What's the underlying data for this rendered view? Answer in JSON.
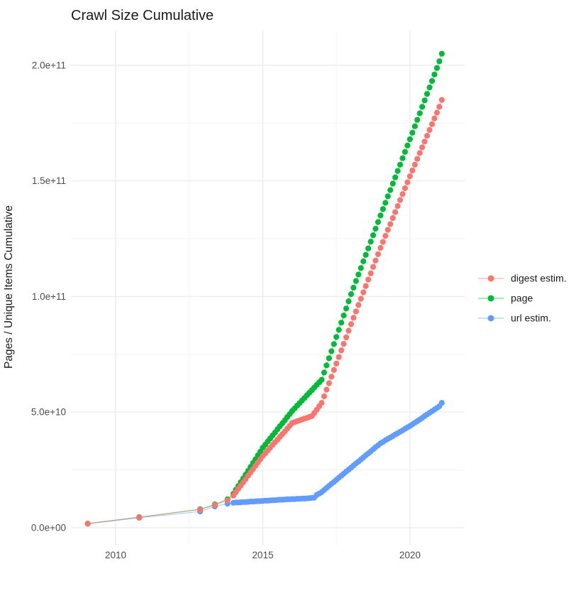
{
  "title": "Crawl Size Cumulative",
  "legend": {
    "position": "right",
    "items": [
      {
        "label": "digest estim.",
        "color": "#F8766D"
      },
      {
        "label": "page",
        "color": "#00BA38"
      },
      {
        "label": "url estim.",
        "color": "#619CFF"
      }
    ]
  },
  "chart_data": {
    "type": "scatter",
    "title": "Crawl Size Cumulative",
    "xlabel": "",
    "ylabel": "Pages / Unique Items Cumulative",
    "grid": true,
    "legend_position": "right",
    "background": "#FFFFFF",
    "xlim": [
      2008.48,
      2021.86
    ],
    "ylim": [
      -7700000000,
      215000000000
    ],
    "y_unit": 1000000000,
    "x_ticks": [
      {
        "value": 2010,
        "label": "2010"
      },
      {
        "value": 2015,
        "label": "2015"
      },
      {
        "value": 2020,
        "label": "2020"
      }
    ],
    "y_ticks": [
      {
        "value": 0,
        "label": "0.0e+00"
      },
      {
        "value": 50000000000,
        "label": "5.0e+10"
      },
      {
        "value": 100000000000,
        "label": "1.0e+11"
      },
      {
        "value": 150000000000,
        "label": "1.5e+11"
      },
      {
        "value": 200000000000,
        "label": "2.0e+11"
      }
    ],
    "x_minor": [
      2012.5,
      2017.5
    ],
    "y_minor": [
      25000000000,
      75000000000,
      125000000000,
      175000000000
    ],
    "series": [
      {
        "name": "page",
        "color": "#00BA38",
        "points": [
          [
            2009.05,
            1.8
          ],
          [
            2010.8,
            4.6
          ],
          [
            2012.87,
            8
          ],
          [
            2013.37,
            10.1
          ],
          [
            2013.8,
            12.3
          ],
          [
            2014.0,
            14.7
          ],
          [
            2014.083,
            16.4
          ],
          [
            2014.167,
            18
          ],
          [
            2014.25,
            19.7
          ],
          [
            2014.333,
            21.3
          ],
          [
            2014.417,
            23
          ],
          [
            2014.5,
            24.6
          ],
          [
            2014.583,
            26.3
          ],
          [
            2014.667,
            28
          ],
          [
            2014.75,
            29.6
          ],
          [
            2014.833,
            31.3
          ],
          [
            2014.917,
            32.9
          ],
          [
            2015.0,
            34.6
          ],
          [
            2015.083,
            35.9
          ],
          [
            2015.167,
            37.3
          ],
          [
            2015.25,
            38.6
          ],
          [
            2015.333,
            39.9
          ],
          [
            2015.417,
            41.2
          ],
          [
            2015.5,
            42.6
          ],
          [
            2015.583,
            43.9
          ],
          [
            2015.667,
            45.2
          ],
          [
            2015.75,
            46.5
          ],
          [
            2015.833,
            47.9
          ],
          [
            2015.917,
            49.2
          ],
          [
            2016.0,
            50.5
          ],
          [
            2016.083,
            51.6
          ],
          [
            2016.167,
            52.8
          ],
          [
            2016.25,
            53.9
          ],
          [
            2016.333,
            55
          ],
          [
            2016.417,
            56.1
          ],
          [
            2016.5,
            57.3
          ],
          [
            2016.583,
            58.4
          ],
          [
            2016.667,
            59.5
          ],
          [
            2016.75,
            60.6
          ],
          [
            2016.833,
            61.8
          ],
          [
            2016.917,
            62.9
          ],
          [
            2017.0,
            64
          ],
          [
            2017.083,
            67.1
          ],
          [
            2017.167,
            70.2
          ],
          [
            2017.25,
            73.3
          ],
          [
            2017.333,
            76.3
          ],
          [
            2017.417,
            79.4
          ],
          [
            2017.5,
            82.5
          ],
          [
            2017.583,
            85.6
          ],
          [
            2017.667,
            88.7
          ],
          [
            2017.75,
            91.8
          ],
          [
            2017.833,
            94.8
          ],
          [
            2017.917,
            97.9
          ],
          [
            2018.0,
            101
          ],
          [
            2018.083,
            103.8
          ],
          [
            2018.167,
            106.7
          ],
          [
            2018.25,
            109.5
          ],
          [
            2018.333,
            112.3
          ],
          [
            2018.417,
            115.2
          ],
          [
            2018.5,
            118
          ],
          [
            2018.583,
            120.8
          ],
          [
            2018.667,
            123.7
          ],
          [
            2018.75,
            126.5
          ],
          [
            2018.833,
            129.3
          ],
          [
            2018.917,
            132.2
          ],
          [
            2019.0,
            135
          ],
          [
            2019.083,
            137.8
          ],
          [
            2019.167,
            140.5
          ],
          [
            2019.25,
            143.3
          ],
          [
            2019.333,
            146
          ],
          [
            2019.417,
            148.8
          ],
          [
            2019.5,
            151.5
          ],
          [
            2019.583,
            154.3
          ],
          [
            2019.667,
            157
          ],
          [
            2019.75,
            159.8
          ],
          [
            2019.833,
            162.5
          ],
          [
            2019.917,
            165.3
          ],
          [
            2020.0,
            168
          ],
          [
            2020.083,
            170.8
          ],
          [
            2020.167,
            173.6
          ],
          [
            2020.25,
            176.4
          ],
          [
            2020.333,
            179.2
          ],
          [
            2020.417,
            182
          ],
          [
            2020.5,
            184.8
          ],
          [
            2020.583,
            187.6
          ],
          [
            2020.667,
            190.4
          ],
          [
            2020.75,
            193.2
          ],
          [
            2020.833,
            196
          ],
          [
            2020.917,
            198.8
          ],
          [
            2021.0,
            201.7
          ],
          [
            2021.083,
            205
          ]
        ]
      },
      {
        "name": "url estim.",
        "color": "#619CFF",
        "points": [
          [
            2009.05,
            1.7
          ],
          [
            2010.8,
            4.3
          ],
          [
            2012.87,
            7
          ],
          [
            2013.37,
            9.2
          ],
          [
            2013.8,
            10.4
          ],
          [
            2014.0,
            10.8
          ],
          [
            2014.083,
            10.9
          ],
          [
            2014.167,
            10.9
          ],
          [
            2014.25,
            11
          ],
          [
            2014.333,
            11.1
          ],
          [
            2014.417,
            11.1
          ],
          [
            2014.5,
            11.2
          ],
          [
            2014.583,
            11.3
          ],
          [
            2014.667,
            11.3
          ],
          [
            2014.75,
            11.4
          ],
          [
            2014.833,
            11.5
          ],
          [
            2014.917,
            11.5
          ],
          [
            2015.0,
            11.6
          ],
          [
            2015.083,
            11.7
          ],
          [
            2015.167,
            11.7
          ],
          [
            2015.25,
            11.8
          ],
          [
            2015.333,
            11.9
          ],
          [
            2015.417,
            11.9
          ],
          [
            2015.5,
            12
          ],
          [
            2015.583,
            12.1
          ],
          [
            2015.667,
            12.1
          ],
          [
            2015.75,
            12.2
          ],
          [
            2015.833,
            12.3
          ],
          [
            2015.917,
            12.3
          ],
          [
            2016.0,
            12.4
          ],
          [
            2016.083,
            12.4
          ],
          [
            2016.167,
            12.5
          ],
          [
            2016.25,
            12.5
          ],
          [
            2016.333,
            12.6
          ],
          [
            2016.417,
            12.6
          ],
          [
            2016.5,
            12.7
          ],
          [
            2016.583,
            12.8
          ],
          [
            2016.667,
            12.9
          ],
          [
            2016.75,
            13
          ],
          [
            2016.833,
            14.2
          ],
          [
            2016.917,
            14.8
          ],
          [
            2017.0,
            15.4
          ],
          [
            2017.083,
            16.3
          ],
          [
            2017.167,
            17.2
          ],
          [
            2017.25,
            18.1
          ],
          [
            2017.333,
            19
          ],
          [
            2017.417,
            19.8
          ],
          [
            2017.5,
            20.7
          ],
          [
            2017.583,
            21.6
          ],
          [
            2017.667,
            22.5
          ],
          [
            2017.75,
            23.4
          ],
          [
            2017.833,
            24.3
          ],
          [
            2017.917,
            25.1
          ],
          [
            2018.0,
            26
          ],
          [
            2018.083,
            26.9
          ],
          [
            2018.167,
            27.8
          ],
          [
            2018.25,
            28.6
          ],
          [
            2018.333,
            29.5
          ],
          [
            2018.417,
            30.4
          ],
          [
            2018.5,
            31.3
          ],
          [
            2018.583,
            32.1
          ],
          [
            2018.667,
            33
          ],
          [
            2018.75,
            33.9
          ],
          [
            2018.833,
            34.8
          ],
          [
            2018.917,
            35.6
          ],
          [
            2019.0,
            36.5
          ],
          [
            2019.083,
            37.1
          ],
          [
            2019.167,
            37.8
          ],
          [
            2019.25,
            38.4
          ],
          [
            2019.333,
            39
          ],
          [
            2019.417,
            39.6
          ],
          [
            2019.5,
            40.3
          ],
          [
            2019.583,
            40.9
          ],
          [
            2019.667,
            41.5
          ],
          [
            2019.75,
            42.1
          ],
          [
            2019.833,
            42.8
          ],
          [
            2019.917,
            43.4
          ],
          [
            2020.0,
            44
          ],
          [
            2020.083,
            44.7
          ],
          [
            2020.167,
            45.4
          ],
          [
            2020.25,
            46.1
          ],
          [
            2020.333,
            46.8
          ],
          [
            2020.417,
            47.5
          ],
          [
            2020.5,
            48.3
          ],
          [
            2020.583,
            49
          ],
          [
            2020.667,
            49.7
          ],
          [
            2020.75,
            50.4
          ],
          [
            2020.833,
            51.1
          ],
          [
            2020.917,
            51.8
          ],
          [
            2021.0,
            52.5
          ],
          [
            2021.083,
            54
          ]
        ]
      },
      {
        "name": "digest estim.",
        "color": "#F8766D",
        "points": [
          [
            2009.05,
            1.8
          ],
          [
            2010.8,
            4.5
          ],
          [
            2012.87,
            7.8
          ],
          [
            2013.37,
            9.8
          ],
          [
            2013.8,
            11.8
          ],
          [
            2014.0,
            13.9
          ],
          [
            2014.083,
            15.3
          ],
          [
            2014.167,
            16.8
          ],
          [
            2014.25,
            18.2
          ],
          [
            2014.333,
            19.6
          ],
          [
            2014.417,
            21
          ],
          [
            2014.5,
            22.5
          ],
          [
            2014.583,
            23.9
          ],
          [
            2014.667,
            25.3
          ],
          [
            2014.75,
            26.8
          ],
          [
            2014.833,
            28.2
          ],
          [
            2014.917,
            29.6
          ],
          [
            2015.0,
            31
          ],
          [
            2015.083,
            32.2
          ],
          [
            2015.167,
            33.4
          ],
          [
            2015.25,
            34.6
          ],
          [
            2015.333,
            35.8
          ],
          [
            2015.417,
            37
          ],
          [
            2015.5,
            38.1
          ],
          [
            2015.583,
            39.3
          ],
          [
            2015.667,
            40.5
          ],
          [
            2015.75,
            41.7
          ],
          [
            2015.833,
            42.9
          ],
          [
            2015.917,
            44.1
          ],
          [
            2016.0,
            45.3
          ],
          [
            2016.083,
            45.7
          ],
          [
            2016.167,
            46.1
          ],
          [
            2016.25,
            46.4
          ],
          [
            2016.333,
            46.8
          ],
          [
            2016.417,
            47.2
          ],
          [
            2016.5,
            47.5
          ],
          [
            2016.583,
            47.9
          ],
          [
            2016.667,
            48.3
          ],
          [
            2016.75,
            49.6
          ],
          [
            2016.833,
            51
          ],
          [
            2016.917,
            52.5
          ],
          [
            2017.0,
            54
          ],
          [
            2017.083,
            56.8
          ],
          [
            2017.167,
            59.7
          ],
          [
            2017.25,
            62.5
          ],
          [
            2017.333,
            65.3
          ],
          [
            2017.417,
            68.2
          ],
          [
            2017.5,
            71
          ],
          [
            2017.583,
            73.8
          ],
          [
            2017.667,
            76.7
          ],
          [
            2017.75,
            79.5
          ],
          [
            2017.833,
            82.3
          ],
          [
            2017.917,
            85.2
          ],
          [
            2018.0,
            88
          ],
          [
            2018.083,
            90.8
          ],
          [
            2018.167,
            93.5
          ],
          [
            2018.25,
            96.3
          ],
          [
            2018.333,
            99
          ],
          [
            2018.417,
            101.8
          ],
          [
            2018.5,
            104.5
          ],
          [
            2018.583,
            107.3
          ],
          [
            2018.667,
            110
          ],
          [
            2018.75,
            112.8
          ],
          [
            2018.833,
            115.5
          ],
          [
            2018.917,
            118.3
          ],
          [
            2019.0,
            121
          ],
          [
            2019.083,
            123.6
          ],
          [
            2019.167,
            126.2
          ],
          [
            2019.25,
            128.8
          ],
          [
            2019.333,
            131.3
          ],
          [
            2019.417,
            133.9
          ],
          [
            2019.5,
            136.5
          ],
          [
            2019.583,
            139.1
          ],
          [
            2019.667,
            141.7
          ],
          [
            2019.75,
            144.3
          ],
          [
            2019.833,
            146.8
          ],
          [
            2019.917,
            149.4
          ],
          [
            2020.0,
            152
          ],
          [
            2020.083,
            154.5
          ],
          [
            2020.167,
            157
          ],
          [
            2020.25,
            159.5
          ],
          [
            2020.333,
            162
          ],
          [
            2020.417,
            164.5
          ],
          [
            2020.5,
            167
          ],
          [
            2020.583,
            169.5
          ],
          [
            2020.667,
            172
          ],
          [
            2020.75,
            174.5
          ],
          [
            2020.833,
            177
          ],
          [
            2020.917,
            179.5
          ],
          [
            2021.0,
            182
          ],
          [
            2021.083,
            185
          ]
        ]
      }
    ]
  }
}
